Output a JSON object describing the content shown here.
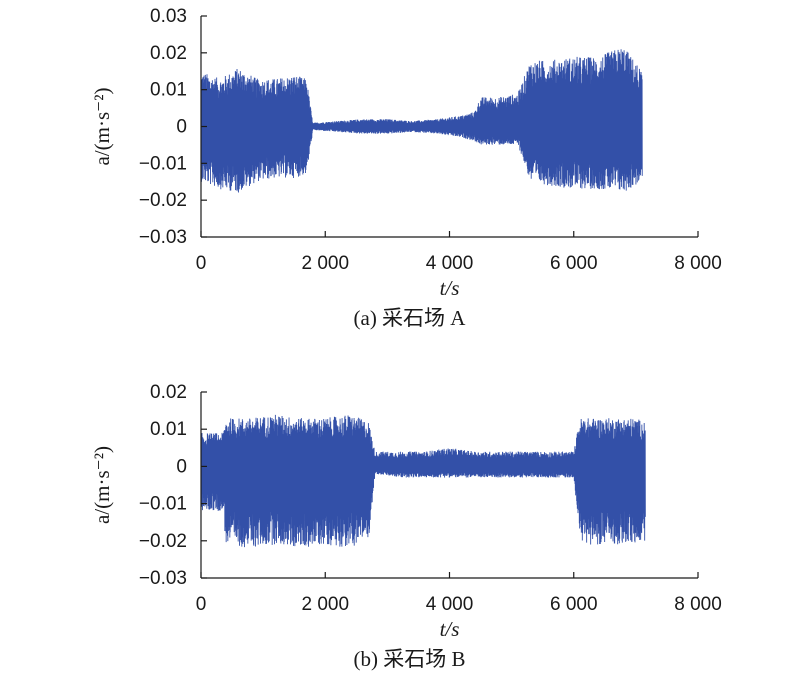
{
  "chart_data": [
    {
      "type": "line",
      "panel_caption": "(a) 采石场 A",
      "xlabel": "t/s",
      "ylabel": "a/(m·s⁻²)",
      "xlim": [
        0,
        8000
      ],
      "ylim": [
        -0.03,
        0.03
      ],
      "xticks": [
        "0",
        "2 000",
        "4 000",
        "6 000",
        "8 000"
      ],
      "yticks": [
        "0.03",
        "0.02",
        "0.01",
        "0",
        "−0.01",
        "−0.02",
        "−0.03"
      ],
      "series_color": "#3350a8",
      "series": [
        {
          "x": [
            0,
            300,
            600,
            900,
            1200,
            1500,
            1700,
            1800,
            2200,
            2600,
            3000,
            3400,
            3800,
            4200,
            4400,
            4500,
            4800,
            5100,
            5300,
            5600,
            6000,
            6400,
            6800,
            7100
          ],
          "upper": [
            0.015,
            0.013,
            0.016,
            0.013,
            0.013,
            0.014,
            0.013,
            0.001,
            0.0015,
            0.002,
            0.002,
            0.0015,
            0.002,
            0.003,
            0.004,
            0.008,
            0.008,
            0.009,
            0.018,
            0.018,
            0.019,
            0.019,
            0.022,
            0.015
          ],
          "lower": [
            -0.015,
            -0.017,
            -0.018,
            -0.015,
            -0.014,
            -0.014,
            -0.013,
            -0.001,
            -0.0015,
            -0.002,
            -0.002,
            -0.0015,
            -0.002,
            -0.003,
            -0.004,
            -0.005,
            -0.005,
            -0.005,
            -0.015,
            -0.016,
            -0.017,
            -0.017,
            -0.018,
            -0.015
          ]
        }
      ]
    },
    {
      "type": "line",
      "panel_caption": "(b) 采石场 B",
      "xlabel": "t/s",
      "ylabel": "a/(m·s⁻²)",
      "xlim": [
        0,
        8000
      ],
      "ylim": [
        -0.03,
        0.02
      ],
      "xticks": [
        "0",
        "2 000",
        "4 000",
        "6 000",
        "8 000"
      ],
      "yticks": [
        "0.02",
        "0.01",
        "0",
        "−0.01",
        "−0.02",
        "−0.03"
      ],
      "series_color": "#3350a8",
      "series": [
        {
          "x": [
            0,
            350,
            400,
            800,
            1200,
            1600,
            2000,
            2400,
            2700,
            2800,
            3200,
            3600,
            4000,
            4400,
            4800,
            5200,
            5600,
            6000,
            6100,
            6200,
            6600,
            7000,
            7150
          ],
          "upper": [
            0.009,
            0.009,
            0.013,
            0.013,
            0.014,
            0.013,
            0.013,
            0.014,
            0.012,
            0.004,
            0.004,
            0.004,
            0.005,
            0.004,
            0.004,
            0.004,
            0.004,
            0.004,
            0.013,
            0.013,
            0.013,
            0.013,
            0.012
          ],
          "lower": [
            -0.012,
            -0.012,
            -0.021,
            -0.022,
            -0.021,
            -0.022,
            -0.021,
            -0.022,
            -0.019,
            -0.002,
            -0.003,
            -0.003,
            -0.003,
            -0.003,
            -0.003,
            -0.003,
            -0.003,
            -0.003,
            -0.02,
            -0.021,
            -0.021,
            -0.021,
            -0.02
          ]
        }
      ]
    }
  ]
}
